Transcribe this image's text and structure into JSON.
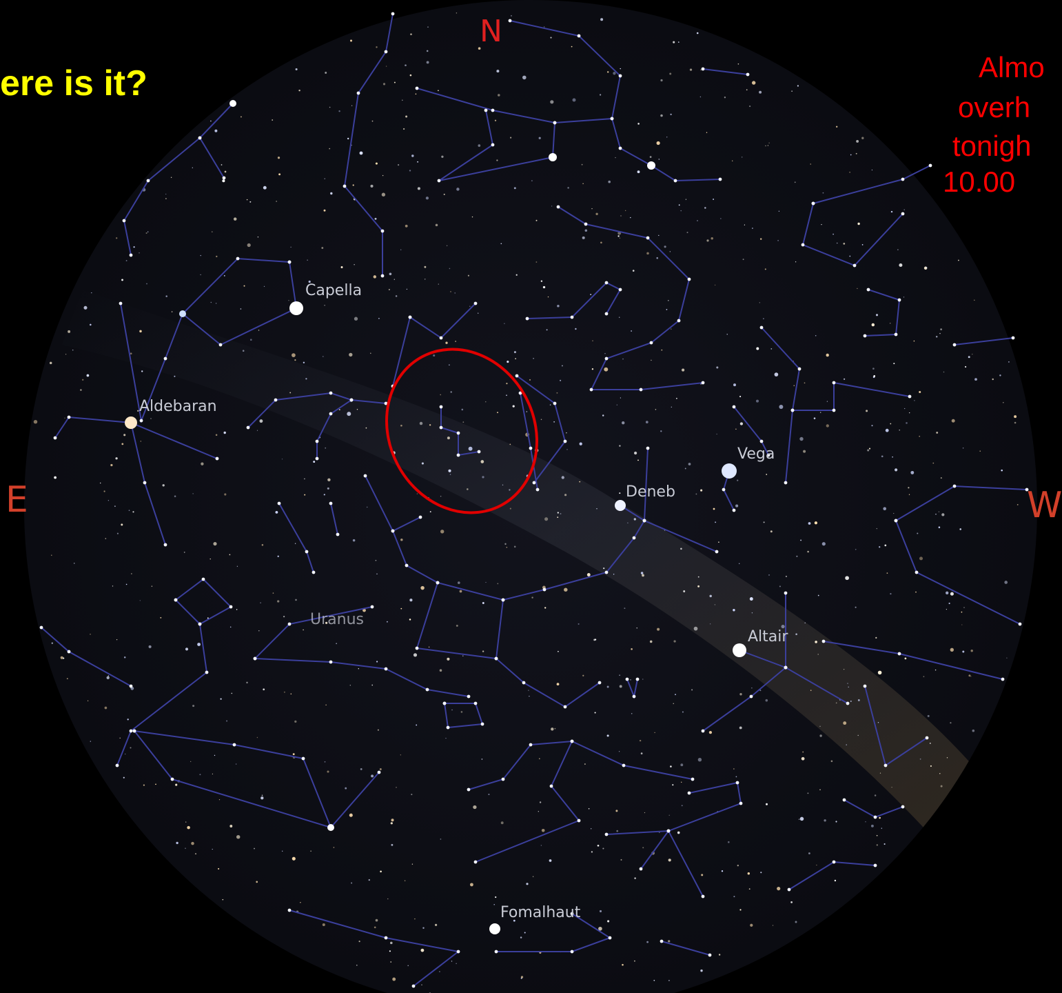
{
  "title": "ere is it?",
  "compass": {
    "north": "N",
    "east": "E",
    "west": "W"
  },
  "note": [
    "Almo",
    "overh",
    "tonigh",
    "10.00"
  ],
  "star_labels": [
    "Capella",
    "Aldebaran",
    "Vega",
    "Deneb",
    "Altair",
    "Uranus",
    "Fomalhaut"
  ]
}
